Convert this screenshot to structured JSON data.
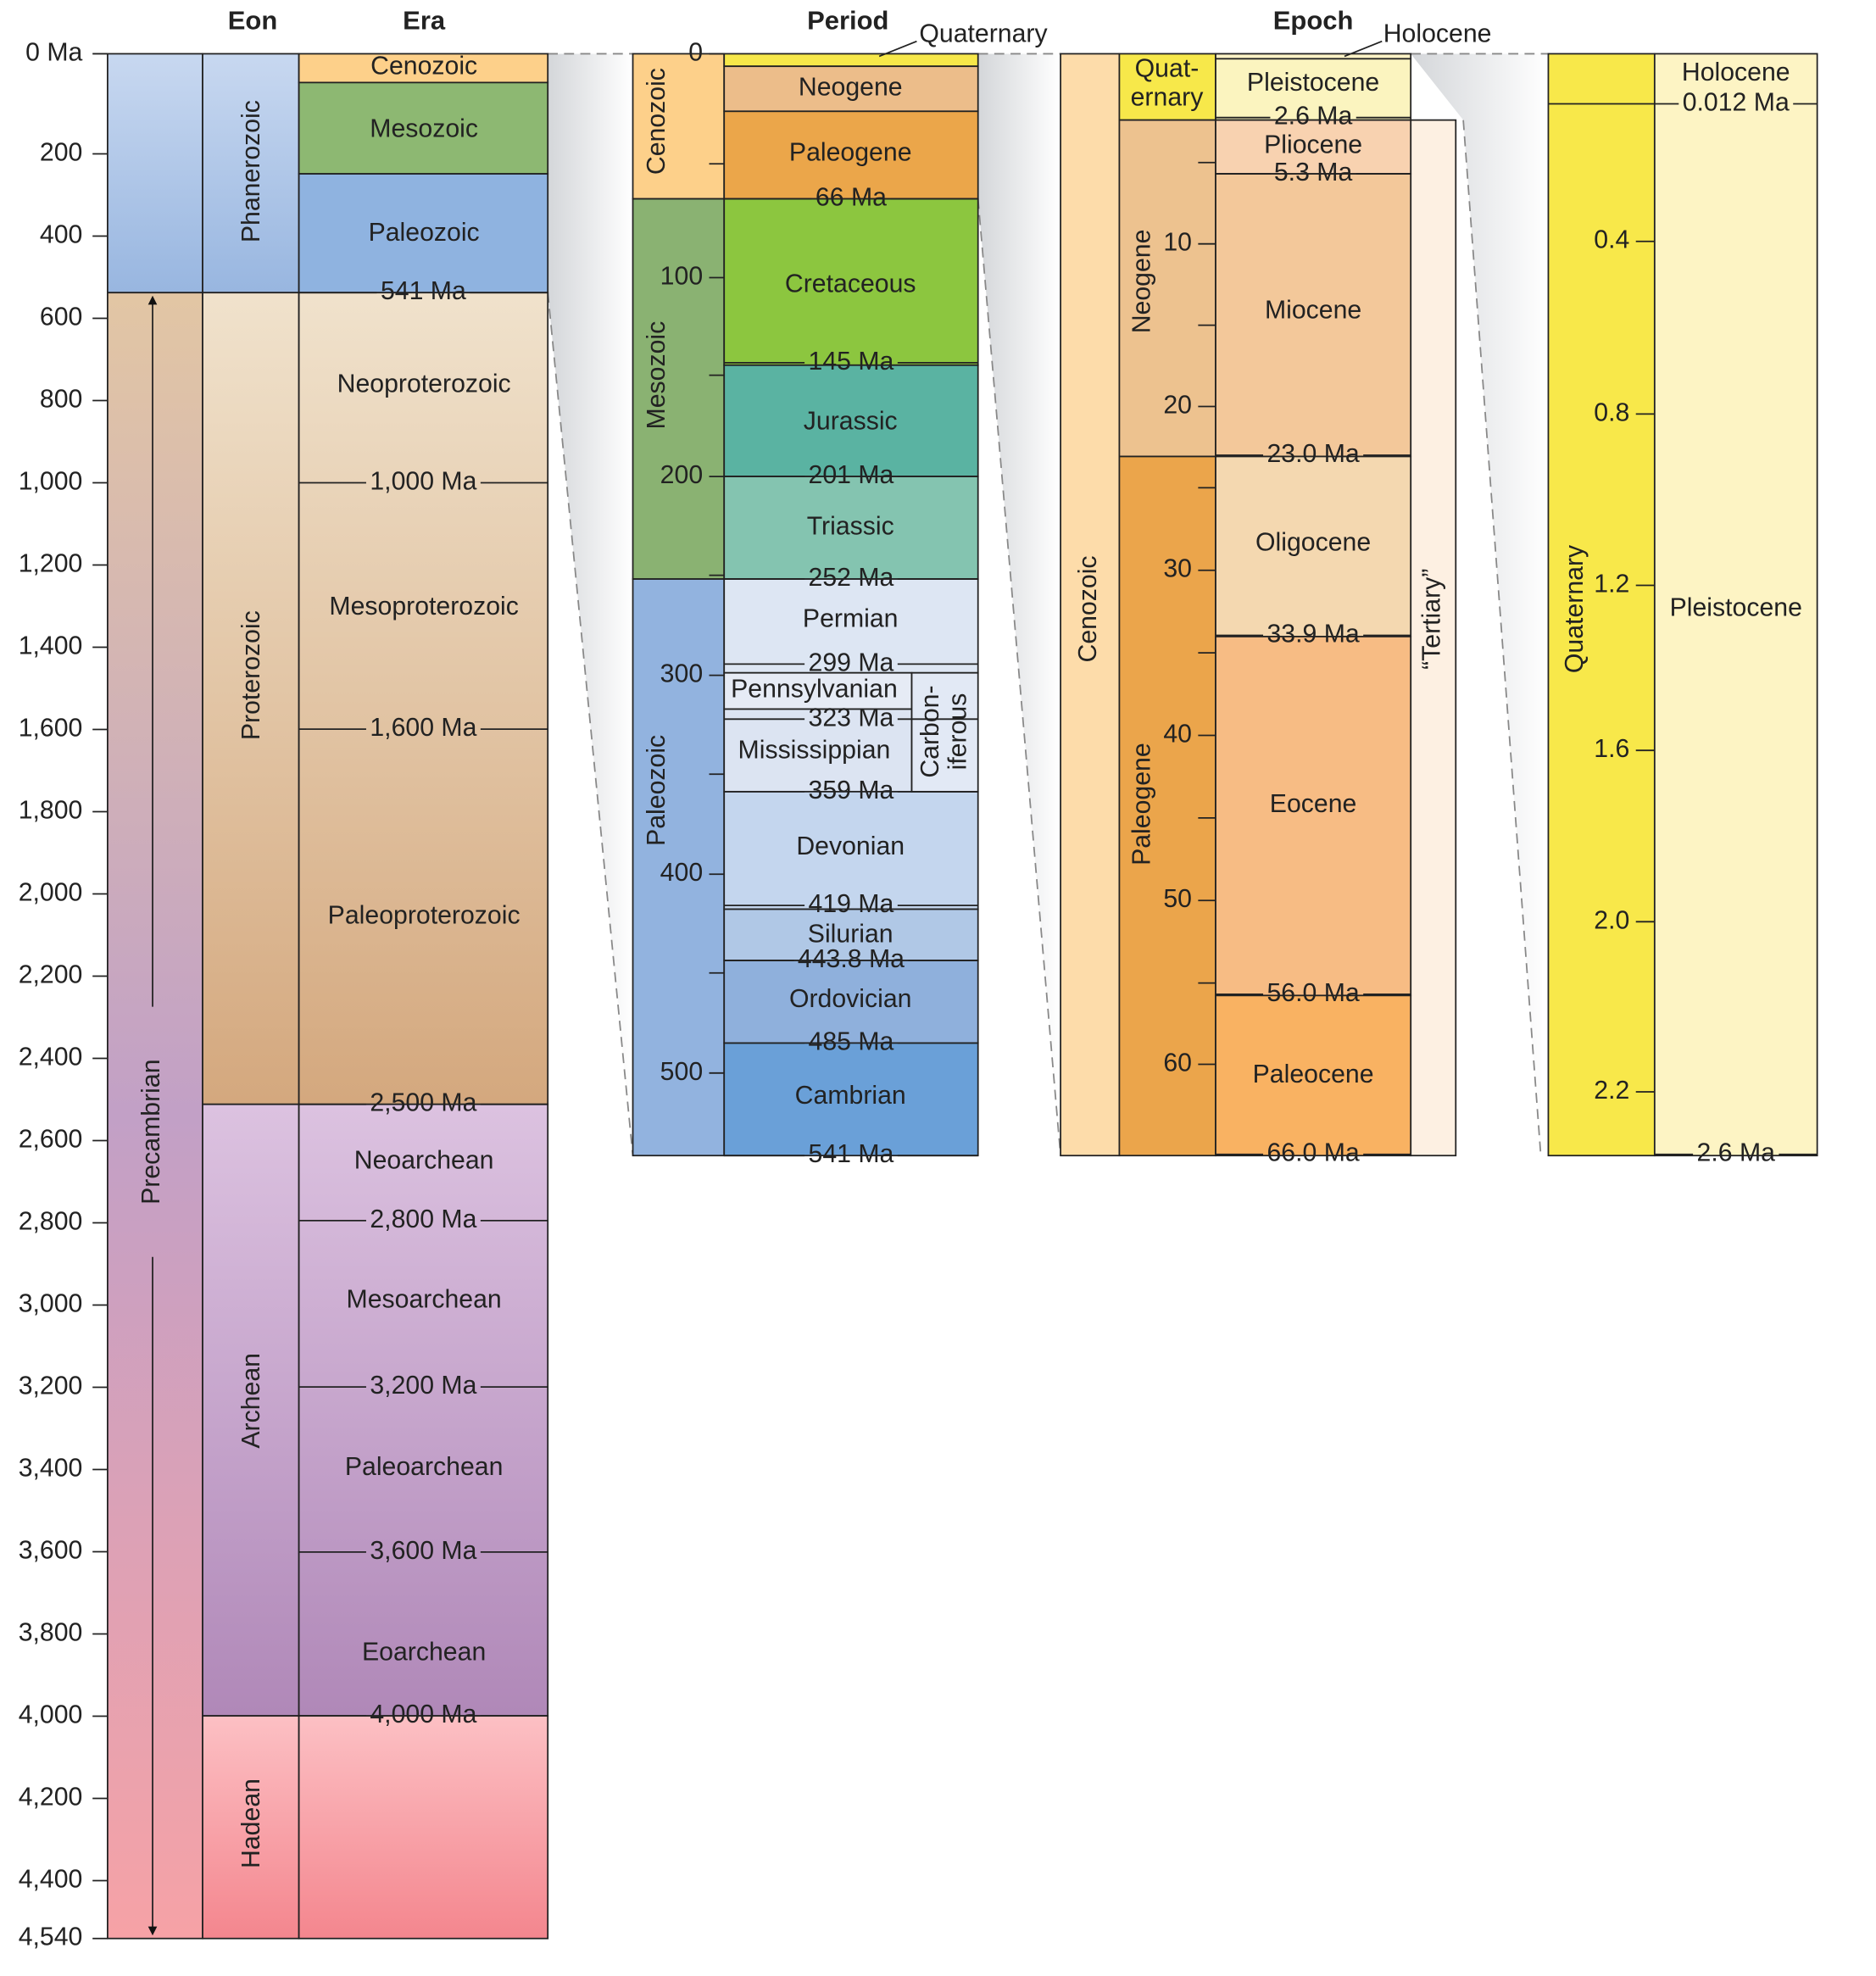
{
  "headers": {
    "eon": "Eon",
    "era": "Era",
    "period": "Period",
    "epoch": "Epoch"
  },
  "column1": {
    "axis_labels": [
      "0 Ma",
      "200",
      "400",
      "600",
      "800",
      "1,000",
      "1,200",
      "1,400",
      "1,600",
      "1,800",
      "2,000",
      "2,200",
      "2,400",
      "2,600",
      "2,800",
      "3,000",
      "3,200",
      "3,400",
      "3,600",
      "3,800",
      "4,000",
      "4,200",
      "4,400",
      "4,540"
    ],
    "precambrian": "Precambrian",
    "eons": [
      "Phanerozoic",
      "Proterozoic",
      "Archean",
      "Hadean"
    ],
    "eras": [
      "Cenozoic",
      "Mesozoic",
      "Paleozoic",
      "Neoproterozoic",
      "Mesoproterozoic",
      "Paleoproterozoic",
      "Neoarchean",
      "Mesoarchean",
      "Paleoarchean",
      "Eoarchean"
    ],
    "boundaries": [
      "541 Ma",
      "1,000 Ma",
      "1,600 Ma",
      "2,500 Ma",
      "2,800 Ma",
      "3,200 Ma",
      "3,600 Ma",
      "4,000 Ma"
    ]
  },
  "column2": {
    "axis_labels": [
      "0",
      "100",
      "200",
      "300",
      "400",
      "500"
    ],
    "eras": [
      "Cenozoic",
      "Mesozoic",
      "Paleozoic"
    ],
    "periods": [
      "Quaternary",
      "Neogene",
      "Paleogene",
      "Cretaceous",
      "Jurassic",
      "Triassic",
      "Permian",
      "Pennsylvanian",
      "Mississippian",
      "Devonian",
      "Silurian",
      "Ordovician",
      "Cambrian"
    ],
    "carboniferous": [
      "Carbon-",
      "iferous"
    ],
    "boundaries": [
      "66 Ma",
      "145 Ma",
      "201 Ma",
      "252 Ma",
      "299 Ma",
      "323 Ma",
      "359 Ma",
      "419 Ma",
      "443.8 Ma",
      "485 Ma",
      "541 Ma"
    ]
  },
  "column3": {
    "axis_labels": [
      "10",
      "20",
      "30",
      "40",
      "50",
      "60"
    ],
    "era": "Cenozoic",
    "quaternary": [
      "Quat-",
      "ernary"
    ],
    "periods": [
      "Neogene",
      "Paleogene"
    ],
    "tertiary": "“Tertiary”",
    "epochs": [
      "Holocene",
      "Pleistocene",
      "Pliocene",
      "Miocene",
      "Oligocene",
      "Eocene",
      "Paleocene"
    ],
    "boundaries": [
      "2.6 Ma",
      "5.3 Ma",
      "23.0 Ma",
      "33.9 Ma",
      "56.0 Ma",
      "66.0 Ma"
    ]
  },
  "column4": {
    "axis_labels": [
      "0.4",
      "0.8",
      "1.2",
      "1.6",
      "2.0",
      "2.2"
    ],
    "period": "Quaternary",
    "epochs": [
      "Holocene",
      "Pleistocene"
    ],
    "boundaries": [
      "0.012 Ma",
      "2.6 Ma"
    ]
  }
}
